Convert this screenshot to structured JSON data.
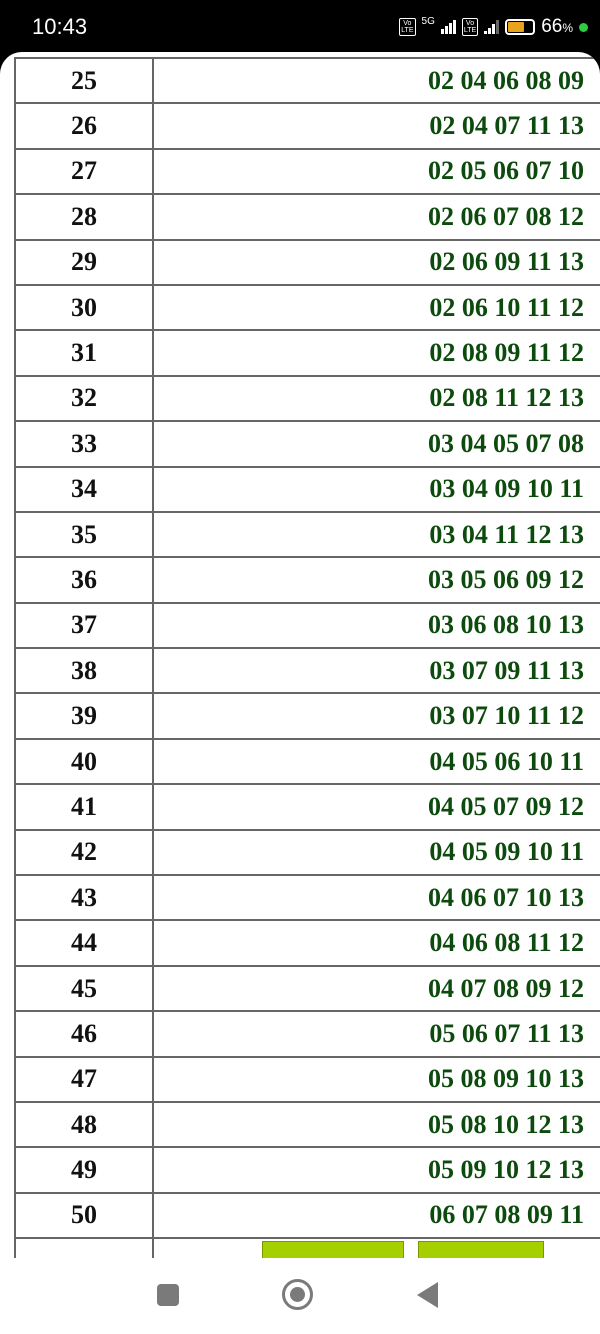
{
  "status_bar": {
    "time": "10:43",
    "network": "5G",
    "battery_percent": "66",
    "battery_unit": "%"
  },
  "rows": [
    {
      "n": "25",
      "v": "02 04 06 08 09"
    },
    {
      "n": "26",
      "v": "02 04 07 11 13"
    },
    {
      "n": "27",
      "v": "02 05 06 07 10"
    },
    {
      "n": "28",
      "v": "02 06 07 08 12"
    },
    {
      "n": "29",
      "v": "02 06 09 11 13"
    },
    {
      "n": "30",
      "v": "02 06 10 11 12"
    },
    {
      "n": "31",
      "v": "02 08 09 11 12"
    },
    {
      "n": "32",
      "v": "02 08 11 12 13"
    },
    {
      "n": "33",
      "v": "03 04 05 07 08"
    },
    {
      "n": "34",
      "v": "03 04 09 10 11"
    },
    {
      "n": "35",
      "v": "03 04 11 12 13"
    },
    {
      "n": "36",
      "v": "03 05 06 09 12"
    },
    {
      "n": "37",
      "v": "03 06 08 10 13"
    },
    {
      "n": "38",
      "v": "03 07 09 11 13"
    },
    {
      "n": "39",
      "v": "03 07 10 11 12"
    },
    {
      "n": "40",
      "v": "04 05 06 10 11"
    },
    {
      "n": "41",
      "v": "04 05 07 09 12"
    },
    {
      "n": "42",
      "v": "04 05 09 10 11"
    },
    {
      "n": "43",
      "v": "04 06 07 10 13"
    },
    {
      "n": "44",
      "v": "04 06 08 11 12"
    },
    {
      "n": "45",
      "v": "04 07 08 09 12"
    },
    {
      "n": "46",
      "v": "05 06 07 11 13"
    },
    {
      "n": "47",
      "v": "05 08 09 10 13"
    },
    {
      "n": "48",
      "v": "05 08 10 12 13"
    },
    {
      "n": "49",
      "v": "05 09 10 12 13"
    },
    {
      "n": "50",
      "v": "06 07 08 09 11"
    }
  ],
  "colors": {
    "value_text": "#0d4a0d",
    "button": "#a6cf00"
  }
}
